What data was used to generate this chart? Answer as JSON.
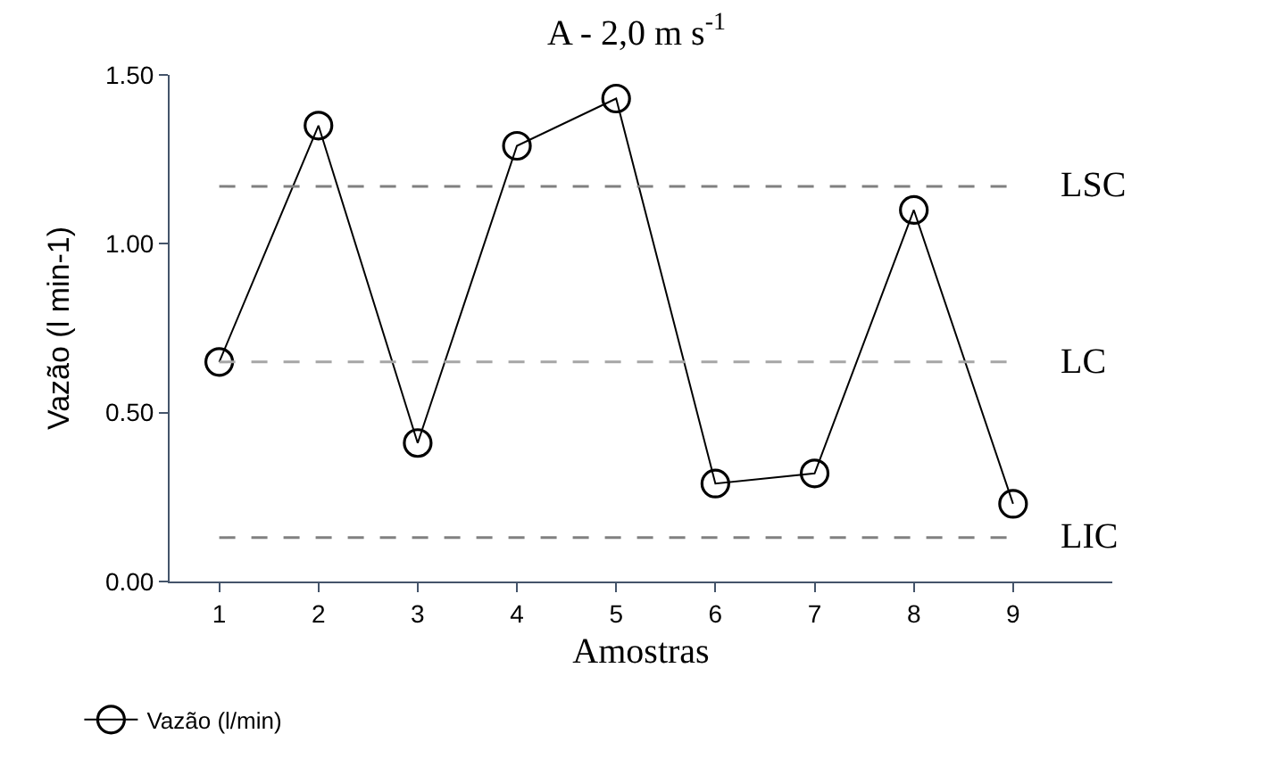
{
  "chart_data": {
    "type": "line",
    "title": "A - 2,0 m s$^{-1}$",
    "xlabel": "Amostras",
    "ylabel": "Vazão (l min-1)",
    "categories": [
      "1",
      "2",
      "3",
      "4",
      "5",
      "6",
      "7",
      "8",
      "9"
    ],
    "series": [
      {
        "name": "Vazão (l/min)",
        "color": "#000000",
        "values": [
          0.65,
          1.35,
          0.41,
          1.29,
          1.43,
          0.29,
          0.32,
          1.1,
          0.23
        ]
      }
    ],
    "ylim": [
      0,
      1.5
    ],
    "yticks": [
      {
        "value": 0,
        "label": "0.00"
      },
      {
        "value": 0.5,
        "label": "0.50"
      },
      {
        "value": 1,
        "label": "1.00"
      },
      {
        "value": 1.5,
        "label": "1.50"
      }
    ],
    "ref_lines": [
      {
        "axis": "y",
        "value": 1.17,
        "label": "LSC",
        "color": "#808080",
        "line_style": "dashed"
      },
      {
        "axis": "y",
        "value": 0.65,
        "label": "LC",
        "color": "#a6a6a6",
        "line_style": "dashed"
      },
      {
        "axis": "y",
        "value": 0.13,
        "label": "LIC",
        "color": "#808080",
        "line_style": "dashed"
      }
    ],
    "marker": "circle",
    "line_style": "solid",
    "legend": "bottom left"
  }
}
